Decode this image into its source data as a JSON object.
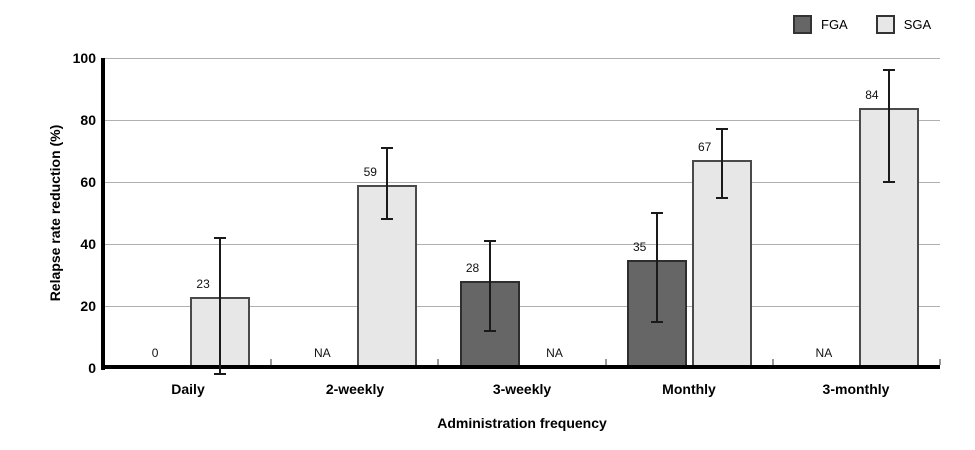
{
  "chart_data": {
    "type": "bar",
    "title": "",
    "xlabel": "Administration frequency",
    "ylabel": "Relapse rate reduction (%)",
    "ylim": [
      0,
      100
    ],
    "yticks": [
      0,
      20,
      40,
      60,
      80,
      100
    ],
    "grid": true,
    "legend_position": "top-right",
    "categories": [
      "Daily",
      "2-weekly",
      "3-weekly",
      "Monthly",
      "3-monthly"
    ],
    "series": [
      {
        "name": "FGA",
        "color": "#666666",
        "border_color": "#2e2e2e",
        "values": [
          0,
          null,
          28,
          35,
          null
        ],
        "bar_labels": [
          "0",
          "NA",
          "28",
          "35",
          "NA"
        ],
        "error_low": [
          null,
          null,
          12,
          15,
          null
        ],
        "error_high": [
          null,
          null,
          41,
          50,
          null
        ]
      },
      {
        "name": "SGA",
        "color": "#e7e7e7",
        "border_color": "#4a4a4a",
        "values": [
          23,
          59,
          null,
          67,
          84
        ],
        "bar_labels": [
          "23",
          "59",
          "NA",
          "67",
          "84"
        ],
        "error_low": [
          -2,
          48,
          null,
          55,
          60
        ],
        "error_high": [
          42,
          71,
          null,
          77,
          96
        ]
      }
    ],
    "colors": {
      "axis": "#000000",
      "gridline": "#b0b0b0",
      "error_bar": "#1a1a1a",
      "category_tick": "#999999",
      "background": "#ffffff"
    }
  }
}
